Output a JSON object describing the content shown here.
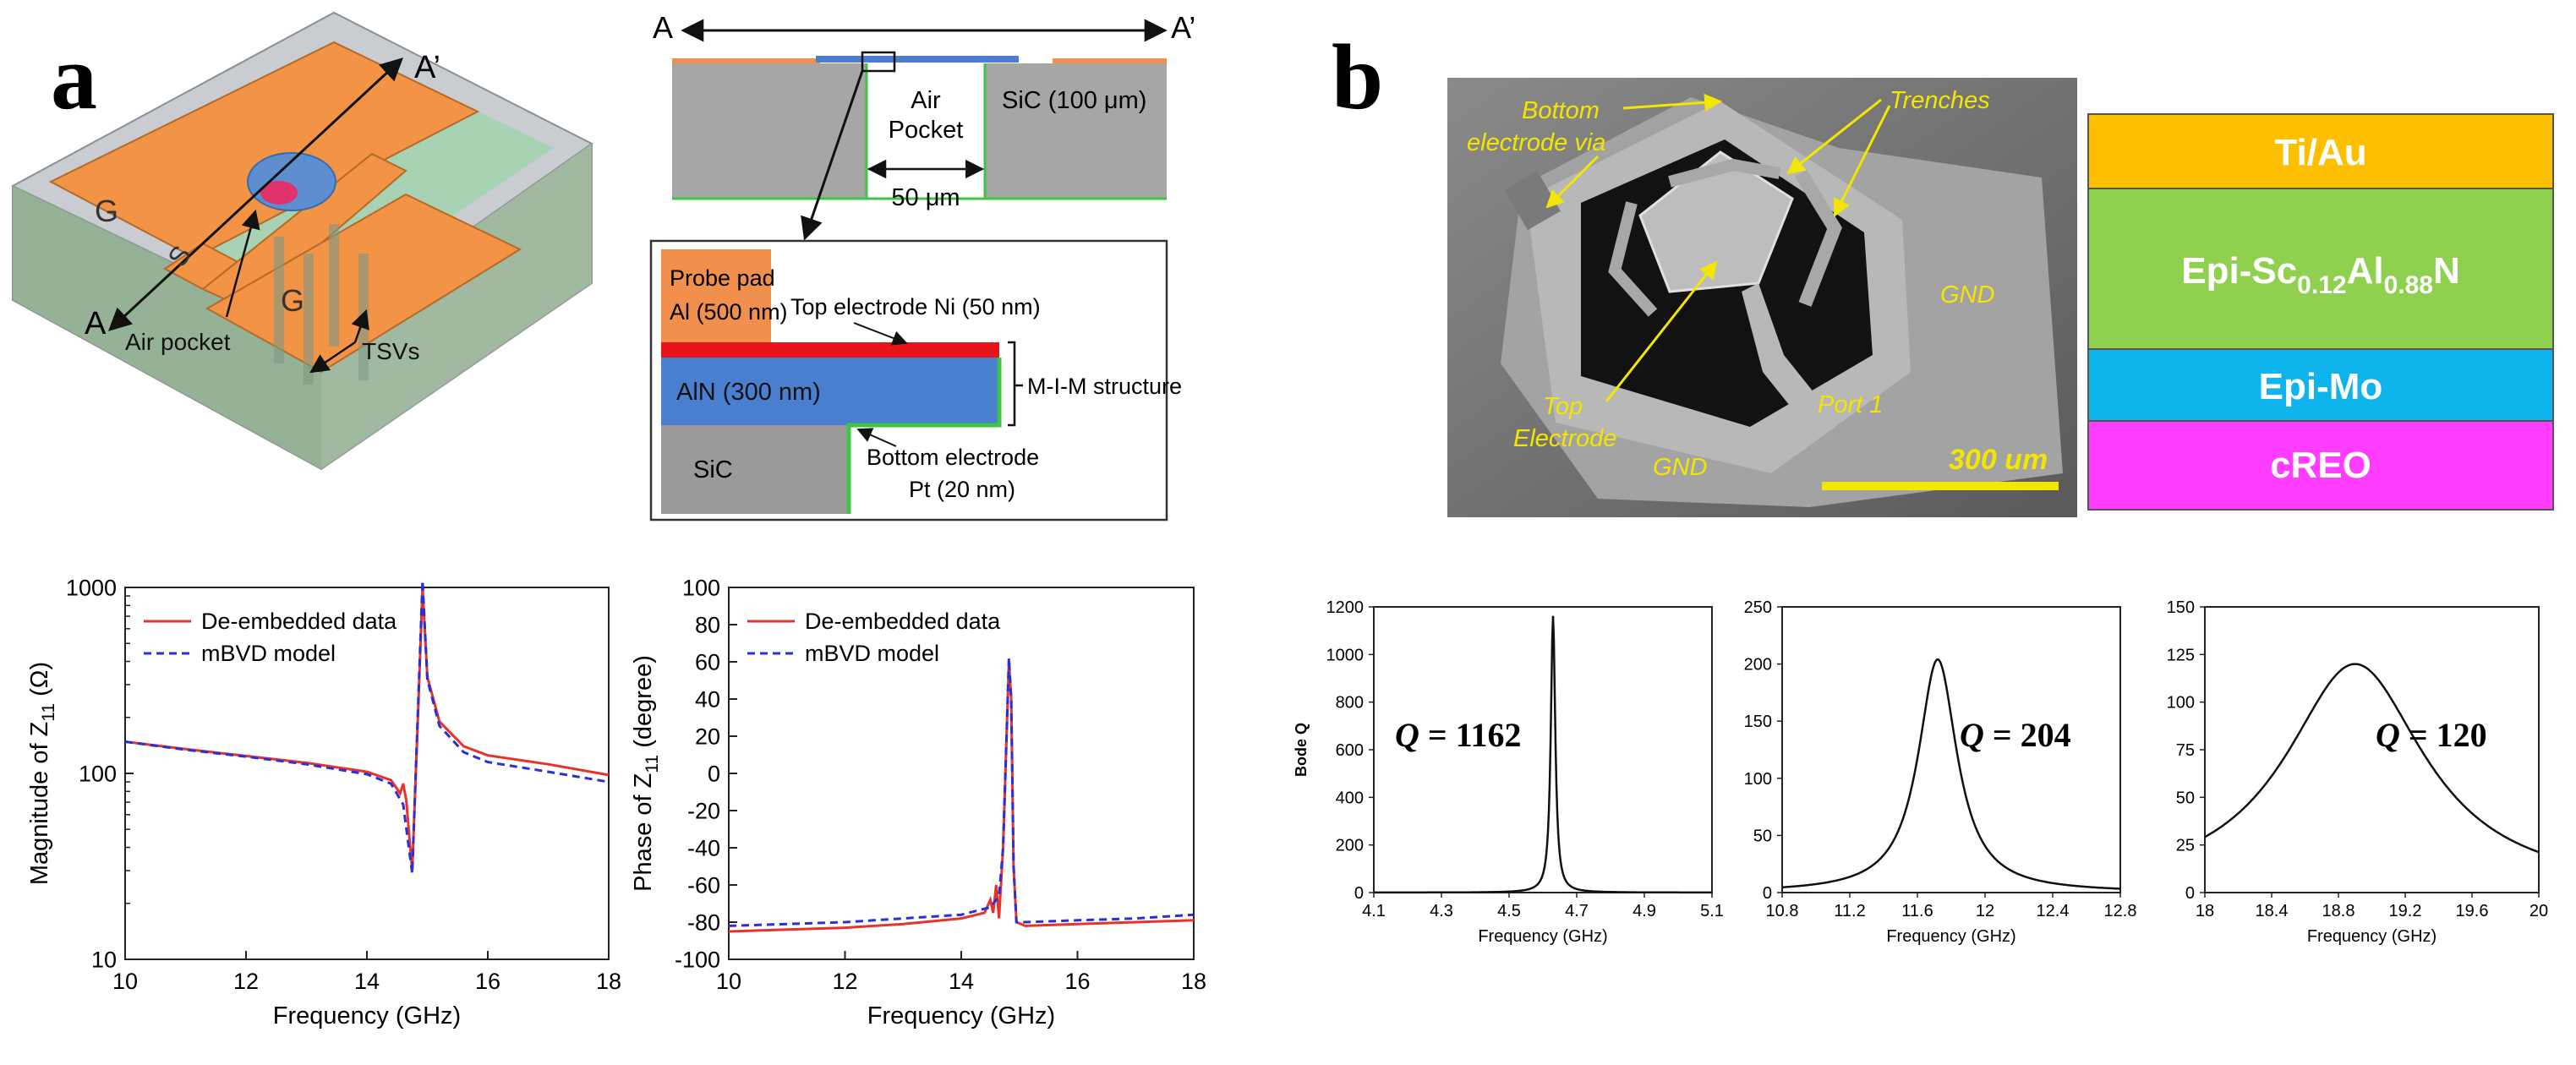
{
  "panel_a": {
    "label": "a",
    "device": {
      "A_prime": "A’",
      "A": "A",
      "G_top": "G",
      "S": "S",
      "G_bot": "G",
      "air_pocket": "Air pocket",
      "tsvs": "TSVs"
    },
    "cross_section": {
      "A": "A",
      "A_prime": "A’",
      "air": "Air",
      "pocket": "Pocket",
      "sic_right": "SiC (100 μm)",
      "width": "50 μm"
    },
    "detail": {
      "probe_pad_1": "Probe pad",
      "probe_pad_2": "Al (500 nm)",
      "top_electrode": "Top electrode Ni (50 nm)",
      "aln": "AlN (300 nm)",
      "mim": "M-I-M structure",
      "sic": "SiC",
      "bottom_1": "Bottom electrode",
      "bottom_2": "Pt (20 nm)"
    }
  },
  "panel_b": {
    "label": "b",
    "sem": {
      "bottom_1": "Bottom",
      "bottom_2": "electrode via",
      "trenches": "Trenches",
      "gnd_right": "GND",
      "top_1": "Top",
      "top_2": "Electrode",
      "port": "Port 1",
      "gnd_bottom": "GND",
      "scale": "300 um"
    },
    "stack": {
      "l1": "Ti/Au",
      "l2_a": "Epi-Sc",
      "l2_b": "0.12",
      "l2_c": "Al",
      "l2_d": "0.88",
      "l2_e": "N",
      "l3": "Epi-Mo",
      "l4": "cREO"
    }
  },
  "chart_data": [
    {
      "type": "line",
      "xlabel": "Frequency (GHz)",
      "ylabel_main": "Magnitude of Z",
      "ylabel_sub": "11",
      "ylabel_unit": " (Ω)",
      "xlim": [
        10,
        18
      ],
      "ylim": [
        10,
        1000
      ],
      "yscale": "log",
      "xticks": [
        "10",
        "12",
        "14",
        "16",
        "18"
      ],
      "yticks": [
        "10",
        "100",
        "1000"
      ],
      "legend_placement": "top-left",
      "series": [
        {
          "name": "De-embedded data",
          "color": "#e8322c",
          "dash": "solid",
          "x": [
            10,
            11,
            12,
            13,
            14,
            14.4,
            14.55,
            14.6,
            14.65,
            14.75,
            14.85,
            14.92,
            15.0,
            15.2,
            15.6,
            16,
            17,
            18
          ],
          "y": [
            148,
            135,
            124,
            114,
            102,
            92,
            78,
            88,
            72,
            30,
            230,
            1000,
            330,
            190,
            140,
            125,
            112,
            98
          ]
        },
        {
          "name": "mBVD model",
          "color": "#2b2fd6",
          "dash": "dashed",
          "x": [
            10,
            11,
            12,
            13,
            14,
            14.4,
            14.6,
            14.75,
            14.85,
            14.92,
            15.0,
            15.2,
            15.6,
            16,
            17,
            18
          ],
          "y": [
            148,
            134,
            123,
            112,
            99,
            88,
            68,
            29,
            250,
            1090,
            320,
            180,
            130,
            115,
            102,
            90
          ]
        }
      ]
    },
    {
      "type": "line",
      "xlabel": "Frequency (GHz)",
      "ylabel_main": "Phase of Z",
      "ylabel_sub": "11",
      "ylabel_unit": " (degree)",
      "xlim": [
        10,
        18
      ],
      "ylim": [
        -100,
        100
      ],
      "xticks": [
        "10",
        "12",
        "14",
        "16",
        "18"
      ],
      "yticks": [
        "100",
        "80",
        "60",
        "40",
        "20",
        "0",
        "-20",
        "-40",
        "-60",
        "-80",
        "-100"
      ],
      "legend_placement": "top-left",
      "series": [
        {
          "name": "De-embedded data",
          "color": "#e8322c",
          "dash": "solid",
          "x": [
            10,
            12,
            13,
            14,
            14.4,
            14.5,
            14.55,
            14.6,
            14.65,
            14.72,
            14.78,
            14.82,
            14.86,
            14.9,
            14.95,
            15.1,
            16,
            17,
            18
          ],
          "y": [
            -85,
            -83,
            -81,
            -78,
            -75,
            -68,
            -75,
            -60,
            -78,
            -40,
            20,
            60,
            40,
            -50,
            -80,
            -82,
            -81,
            -80,
            -79
          ]
        },
        {
          "name": "mBVD model",
          "color": "#2b2fd6",
          "dash": "dashed",
          "x": [
            10,
            12,
            13,
            14,
            14.5,
            14.65,
            14.72,
            14.78,
            14.82,
            14.86,
            14.9,
            14.95,
            15.1,
            16,
            17,
            18
          ],
          "y": [
            -82,
            -80,
            -78,
            -76,
            -72,
            -66,
            -40,
            20,
            62,
            40,
            -50,
            -80,
            -80,
            -79,
            -78,
            -76
          ]
        }
      ]
    },
    {
      "type": "line",
      "xlabel": "Frequency (GHz)",
      "ylabel": "Bode Q",
      "xlim": [
        4.1,
        5.1
      ],
      "ylim": [
        0,
        1200
      ],
      "xticks": [
        "4.1",
        "4.3",
        "4.5",
        "4.7",
        "4.9",
        "5.1"
      ],
      "yticks": [
        "0",
        "200",
        "400",
        "600",
        "800",
        "1000",
        "1200"
      ],
      "annotation_q": "Q",
      "annotation_value": " = 1162",
      "peak": {
        "f0": 4.63,
        "qmax": 1162,
        "hw": 0.008
      }
    },
    {
      "type": "line",
      "xlabel": "Frequency (GHz)",
      "xlim": [
        10.8,
        12.8
      ],
      "ylim": [
        0,
        250
      ],
      "xticks": [
        "10.8",
        "11.2",
        "11.6",
        "12",
        "12.4",
        "12.8"
      ],
      "yticks": [
        "0",
        "50",
        "100",
        "150",
        "200",
        "250"
      ],
      "annotation_q": "Q",
      "annotation_value": " = 204",
      "peak": {
        "f0": 11.72,
        "qmax": 204,
        "hw": 0.14
      }
    },
    {
      "type": "line",
      "xlabel": "Frequency (GHz)",
      "xlim": [
        18,
        20
      ],
      "ylim": [
        0,
        150
      ],
      "xticks": [
        "18",
        "18.4",
        "18.8",
        "19.2",
        "19.6",
        "20"
      ],
      "yticks": [
        "0",
        "25",
        "50",
        "75",
        "100",
        "125",
        "150"
      ],
      "annotation_q": "Q",
      "annotation_value": " = 120",
      "peak": {
        "f0": 18.9,
        "qmax": 120,
        "hw": 0.51
      }
    }
  ]
}
